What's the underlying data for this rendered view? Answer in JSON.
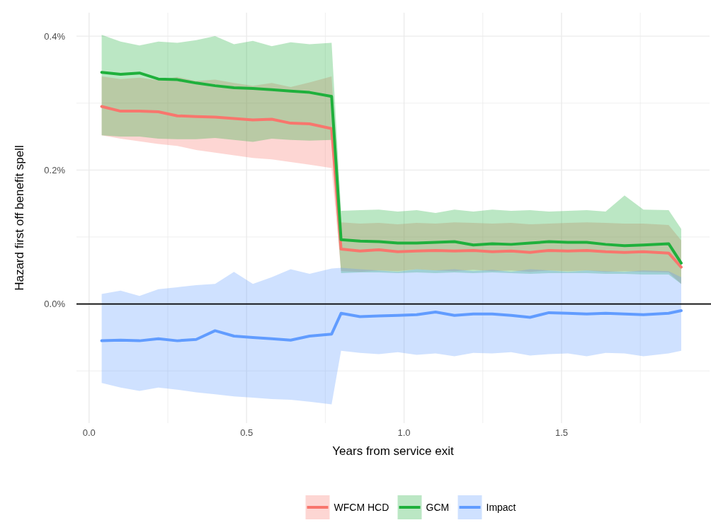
{
  "chart_data": {
    "type": "line",
    "xlabel": "Years from service exit",
    "ylabel": "Hazard first off benefit spell",
    "x": [
      0.04,
      0.1,
      0.16,
      0.22,
      0.28,
      0.34,
      0.4,
      0.46,
      0.52,
      0.58,
      0.64,
      0.7,
      0.77,
      0.8,
      0.86,
      0.92,
      0.98,
      1.04,
      1.1,
      1.16,
      1.22,
      1.28,
      1.34,
      1.4,
      1.46,
      1.52,
      1.58,
      1.64,
      1.7,
      1.76,
      1.84,
      1.88
    ],
    "series": [
      {
        "name": "WFCM HCD",
        "color": "#f8766d",
        "values": [
          0.295,
          0.288,
          0.288,
          0.287,
          0.281,
          0.28,
          0.279,
          0.277,
          0.275,
          0.276,
          0.27,
          0.269,
          0.262,
          0.082,
          0.079,
          0.081,
          0.078,
          0.079,
          0.08,
          0.079,
          0.08,
          0.078,
          0.079,
          0.077,
          0.08,
          0.079,
          0.08,
          0.078,
          0.077,
          0.078,
          0.076,
          0.055
        ],
        "lower": [
          0.252,
          0.247,
          0.243,
          0.239,
          0.236,
          0.23,
          0.226,
          0.222,
          0.218,
          0.216,
          0.212,
          0.208,
          0.203,
          0.049,
          0.048,
          0.05,
          0.049,
          0.052,
          0.05,
          0.049,
          0.051,
          0.049,
          0.05,
          0.048,
          0.05,
          0.049,
          0.05,
          0.048,
          0.049,
          0.048,
          0.047,
          0.03
        ],
        "upper": [
          0.34,
          0.336,
          0.338,
          0.334,
          0.339,
          0.333,
          0.335,
          0.33,
          0.326,
          0.33,
          0.324,
          0.331,
          0.34,
          0.122,
          0.12,
          0.121,
          0.119,
          0.121,
          0.12,
          0.122,
          0.121,
          0.12,
          0.121,
          0.119,
          0.12,
          0.121,
          0.122,
          0.121,
          0.12,
          0.12,
          0.118,
          0.095
        ]
      },
      {
        "name": "GCM",
        "color": "#1fb03c",
        "values": [
          0.346,
          0.343,
          0.345,
          0.336,
          0.335,
          0.33,
          0.326,
          0.323,
          0.322,
          0.32,
          0.318,
          0.316,
          0.31,
          0.096,
          0.094,
          0.093,
          0.091,
          0.091,
          0.092,
          0.093,
          0.088,
          0.09,
          0.089,
          0.091,
          0.093,
          0.092,
          0.092,
          0.089,
          0.087,
          0.088,
          0.09,
          0.061
        ],
        "lower": [
          0.252,
          0.25,
          0.25,
          0.247,
          0.246,
          0.246,
          0.248,
          0.245,
          0.242,
          0.247,
          0.245,
          0.244,
          0.245,
          0.046,
          0.047,
          0.047,
          0.046,
          0.047,
          0.046,
          0.047,
          0.046,
          0.047,
          0.046,
          0.045,
          0.046,
          0.046,
          0.046,
          0.045,
          0.045,
          0.044,
          0.044,
          0.03
        ],
        "upper": [
          0.402,
          0.392,
          0.386,
          0.392,
          0.39,
          0.394,
          0.4,
          0.388,
          0.393,
          0.385,
          0.391,
          0.388,
          0.39,
          0.139,
          0.14,
          0.141,
          0.138,
          0.14,
          0.136,
          0.141,
          0.138,
          0.141,
          0.139,
          0.14,
          0.138,
          0.139,
          0.14,
          0.138,
          0.162,
          0.141,
          0.14,
          0.112
        ]
      },
      {
        "name": "Impact",
        "color": "#619cff",
        "values": [
          -0.055,
          -0.054,
          -0.055,
          -0.052,
          -0.055,
          -0.053,
          -0.04,
          -0.048,
          -0.05,
          -0.052,
          -0.054,
          -0.048,
          -0.045,
          -0.014,
          -0.019,
          -0.018,
          -0.017,
          -0.016,
          -0.012,
          -0.017,
          -0.015,
          -0.015,
          -0.017,
          -0.02,
          -0.013,
          -0.014,
          -0.015,
          -0.014,
          -0.015,
          -0.016,
          -0.014,
          -0.01
        ],
        "lower": [
          -0.118,
          -0.125,
          -0.13,
          -0.125,
          -0.128,
          -0.132,
          -0.135,
          -0.138,
          -0.14,
          -0.142,
          -0.143,
          -0.146,
          -0.15,
          -0.07,
          -0.073,
          -0.075,
          -0.072,
          -0.076,
          -0.074,
          -0.078,
          -0.073,
          -0.074,
          -0.072,
          -0.077,
          -0.075,
          -0.074,
          -0.078,
          -0.073,
          -0.074,
          -0.078,
          -0.074,
          -0.07
        ],
        "upper": [
          0.015,
          0.02,
          0.012,
          0.022,
          0.025,
          0.028,
          0.03,
          0.048,
          0.03,
          0.04,
          0.052,
          0.045,
          0.053,
          0.054,
          0.052,
          0.05,
          0.048,
          0.052,
          0.05,
          0.052,
          0.049,
          0.051,
          0.048,
          0.052,
          0.05,
          0.048,
          0.05,
          0.049,
          0.048,
          0.05,
          0.049,
          0.04
        ]
      }
    ],
    "xlim": [
      -0.04,
      1.97
    ],
    "ylim": [
      -0.178,
      0.435
    ],
    "xticks": [
      {
        "value": 0,
        "label": "0.0"
      },
      {
        "value": 0.25,
        "label": null
      },
      0.5,
      {
        "value": 0.75,
        "label": null
      },
      {
        "value": 1,
        "label": "1.0"
      },
      {
        "value": 1.25,
        "label": null
      },
      1.5,
      {
        "value": 1.75,
        "label": null
      }
    ],
    "yticks": [
      {
        "value": -0.1,
        "label": null
      },
      {
        "value": 0,
        "label": "0.0%"
      },
      {
        "value": 0.1,
        "label": null
      },
      {
        "value": 0.2,
        "label": "0.2%"
      },
      {
        "value": 0.3,
        "label": null
      },
      {
        "value": 0.4,
        "label": "0.4%"
      }
    ],
    "ref_lines": [
      {
        "axis": "y",
        "value": 0,
        "color": "#000000"
      }
    ],
    "grid": true,
    "legend": "bottom",
    "marker": "none",
    "line_style": "solid"
  }
}
